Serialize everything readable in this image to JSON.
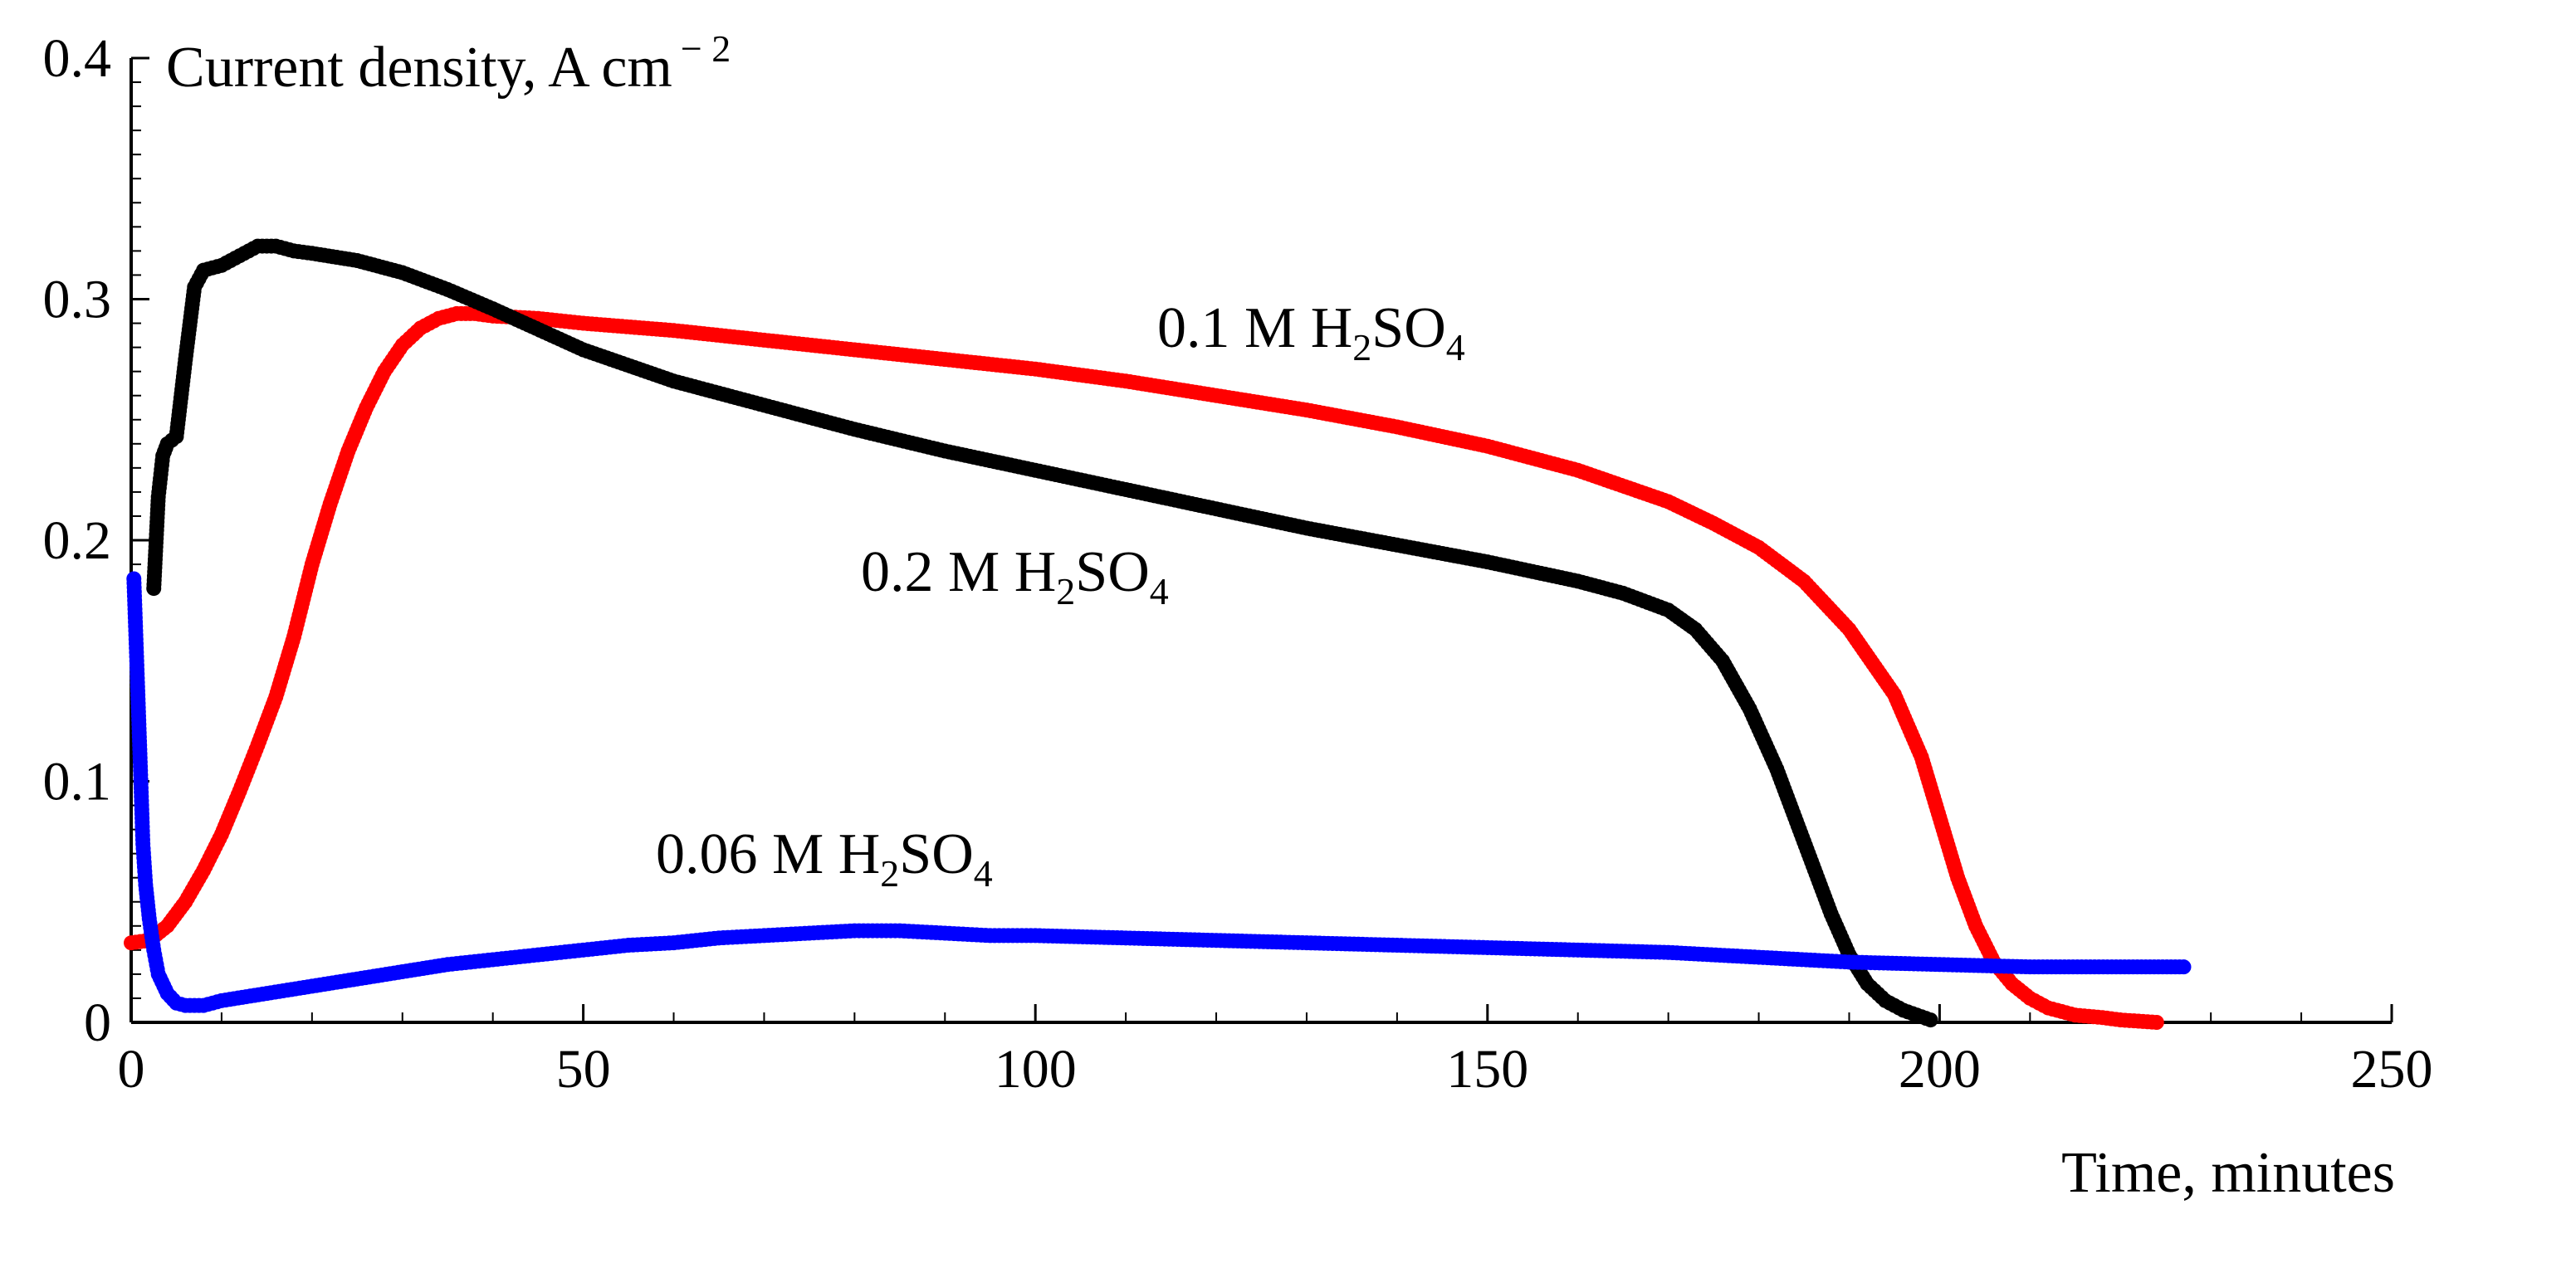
{
  "chart_data": {
    "type": "scatter",
    "title": "",
    "xlabel": "Time, minutes",
    "ylabel": "Current density, A cm",
    "ylabel_sup": "− 2",
    "xlim": [
      0,
      250
    ],
    "ylim": [
      0,
      0.4
    ],
    "x_ticks": [
      "0",
      "50",
      "100",
      "150",
      "200",
      "250"
    ],
    "y_ticks": [
      "0",
      "0.1",
      "0.2",
      "0.3",
      "0.4"
    ],
    "grid": false,
    "series": [
      {
        "name": "0.1 M H2SO4",
        "label_parts": [
          "0.1 M H",
          "2",
          "SO",
          "4"
        ],
        "color": "#ff0000",
        "x": [
          0,
          2,
          4,
          6,
          8,
          10,
          12,
          14,
          16,
          18,
          20,
          22,
          24,
          26,
          28,
          30,
          32,
          34,
          36,
          38,
          40,
          45,
          50,
          60,
          70,
          80,
          90,
          100,
          110,
          120,
          130,
          140,
          150,
          160,
          170,
          175,
          180,
          185,
          190,
          195,
          198,
          200,
          202,
          204,
          206,
          208,
          210,
          212,
          215,
          218,
          220,
          224
        ],
        "y": [
          0.033,
          0.034,
          0.04,
          0.05,
          0.063,
          0.078,
          0.096,
          0.115,
          0.135,
          0.16,
          0.19,
          0.215,
          0.237,
          0.255,
          0.27,
          0.281,
          0.288,
          0.292,
          0.294,
          0.294,
          0.293,
          0.292,
          0.29,
          0.287,
          0.283,
          0.279,
          0.275,
          0.271,
          0.266,
          0.26,
          0.254,
          0.247,
          0.239,
          0.229,
          0.216,
          0.207,
          0.197,
          0.183,
          0.163,
          0.136,
          0.11,
          0.085,
          0.06,
          0.04,
          0.025,
          0.016,
          0.01,
          0.006,
          0.003,
          0.002,
          0.001,
          0.0
        ]
      },
      {
        "name": "0.2 M H2SO4",
        "label_parts": [
          "0.2 M H",
          "2",
          "SO",
          "4"
        ],
        "color": "#000000",
        "x": [
          2.5,
          3,
          3.5,
          4,
          5,
          6,
          7,
          8,
          9,
          10,
          12,
          14,
          16,
          18,
          20,
          25,
          30,
          35,
          40,
          50,
          60,
          70,
          80,
          90,
          100,
          110,
          120,
          130,
          140,
          150,
          160,
          165,
          170,
          173,
          176,
          179,
          182,
          185,
          188,
          190,
          192,
          194,
          196,
          199
        ],
        "y": [
          0.18,
          0.218,
          0.235,
          0.24,
          0.243,
          0.275,
          0.305,
          0.312,
          0.313,
          0.314,
          0.318,
          0.322,
          0.322,
          0.32,
          0.319,
          0.316,
          0.311,
          0.304,
          0.296,
          0.279,
          0.266,
          0.256,
          0.246,
          0.237,
          0.229,
          0.221,
          0.213,
          0.205,
          0.198,
          0.191,
          0.183,
          0.178,
          0.171,
          0.163,
          0.15,
          0.13,
          0.105,
          0.075,
          0.045,
          0.028,
          0.016,
          0.009,
          0.005,
          0.001
        ]
      },
      {
        "name": "0.06 M H2SO4",
        "label_parts": [
          "0.06 M H",
          "2",
          "SO",
          "4"
        ],
        "color": "#0000ff",
        "x": [
          0.3,
          0.7,
          1.0,
          1.3,
          1.6,
          2,
          2.5,
          3,
          4,
          5,
          6,
          8,
          10,
          15,
          20,
          25,
          30,
          35,
          40,
          45,
          50,
          55,
          60,
          65,
          70,
          75,
          80,
          85,
          90,
          95,
          100,
          110,
          120,
          130,
          140,
          150,
          160,
          170,
          180,
          190,
          200,
          210,
          220,
          227
        ],
        "y": [
          0.184,
          0.141,
          0.108,
          0.074,
          0.057,
          0.043,
          0.03,
          0.02,
          0.012,
          0.008,
          0.007,
          0.007,
          0.009,
          0.012,
          0.015,
          0.018,
          0.021,
          0.024,
          0.026,
          0.028,
          0.03,
          0.032,
          0.033,
          0.035,
          0.036,
          0.037,
          0.038,
          0.038,
          0.037,
          0.036,
          0.036,
          0.035,
          0.034,
          0.033,
          0.032,
          0.031,
          0.03,
          0.029,
          0.027,
          0.025,
          0.024,
          0.023,
          0.023,
          0.023
        ]
      }
    ]
  }
}
